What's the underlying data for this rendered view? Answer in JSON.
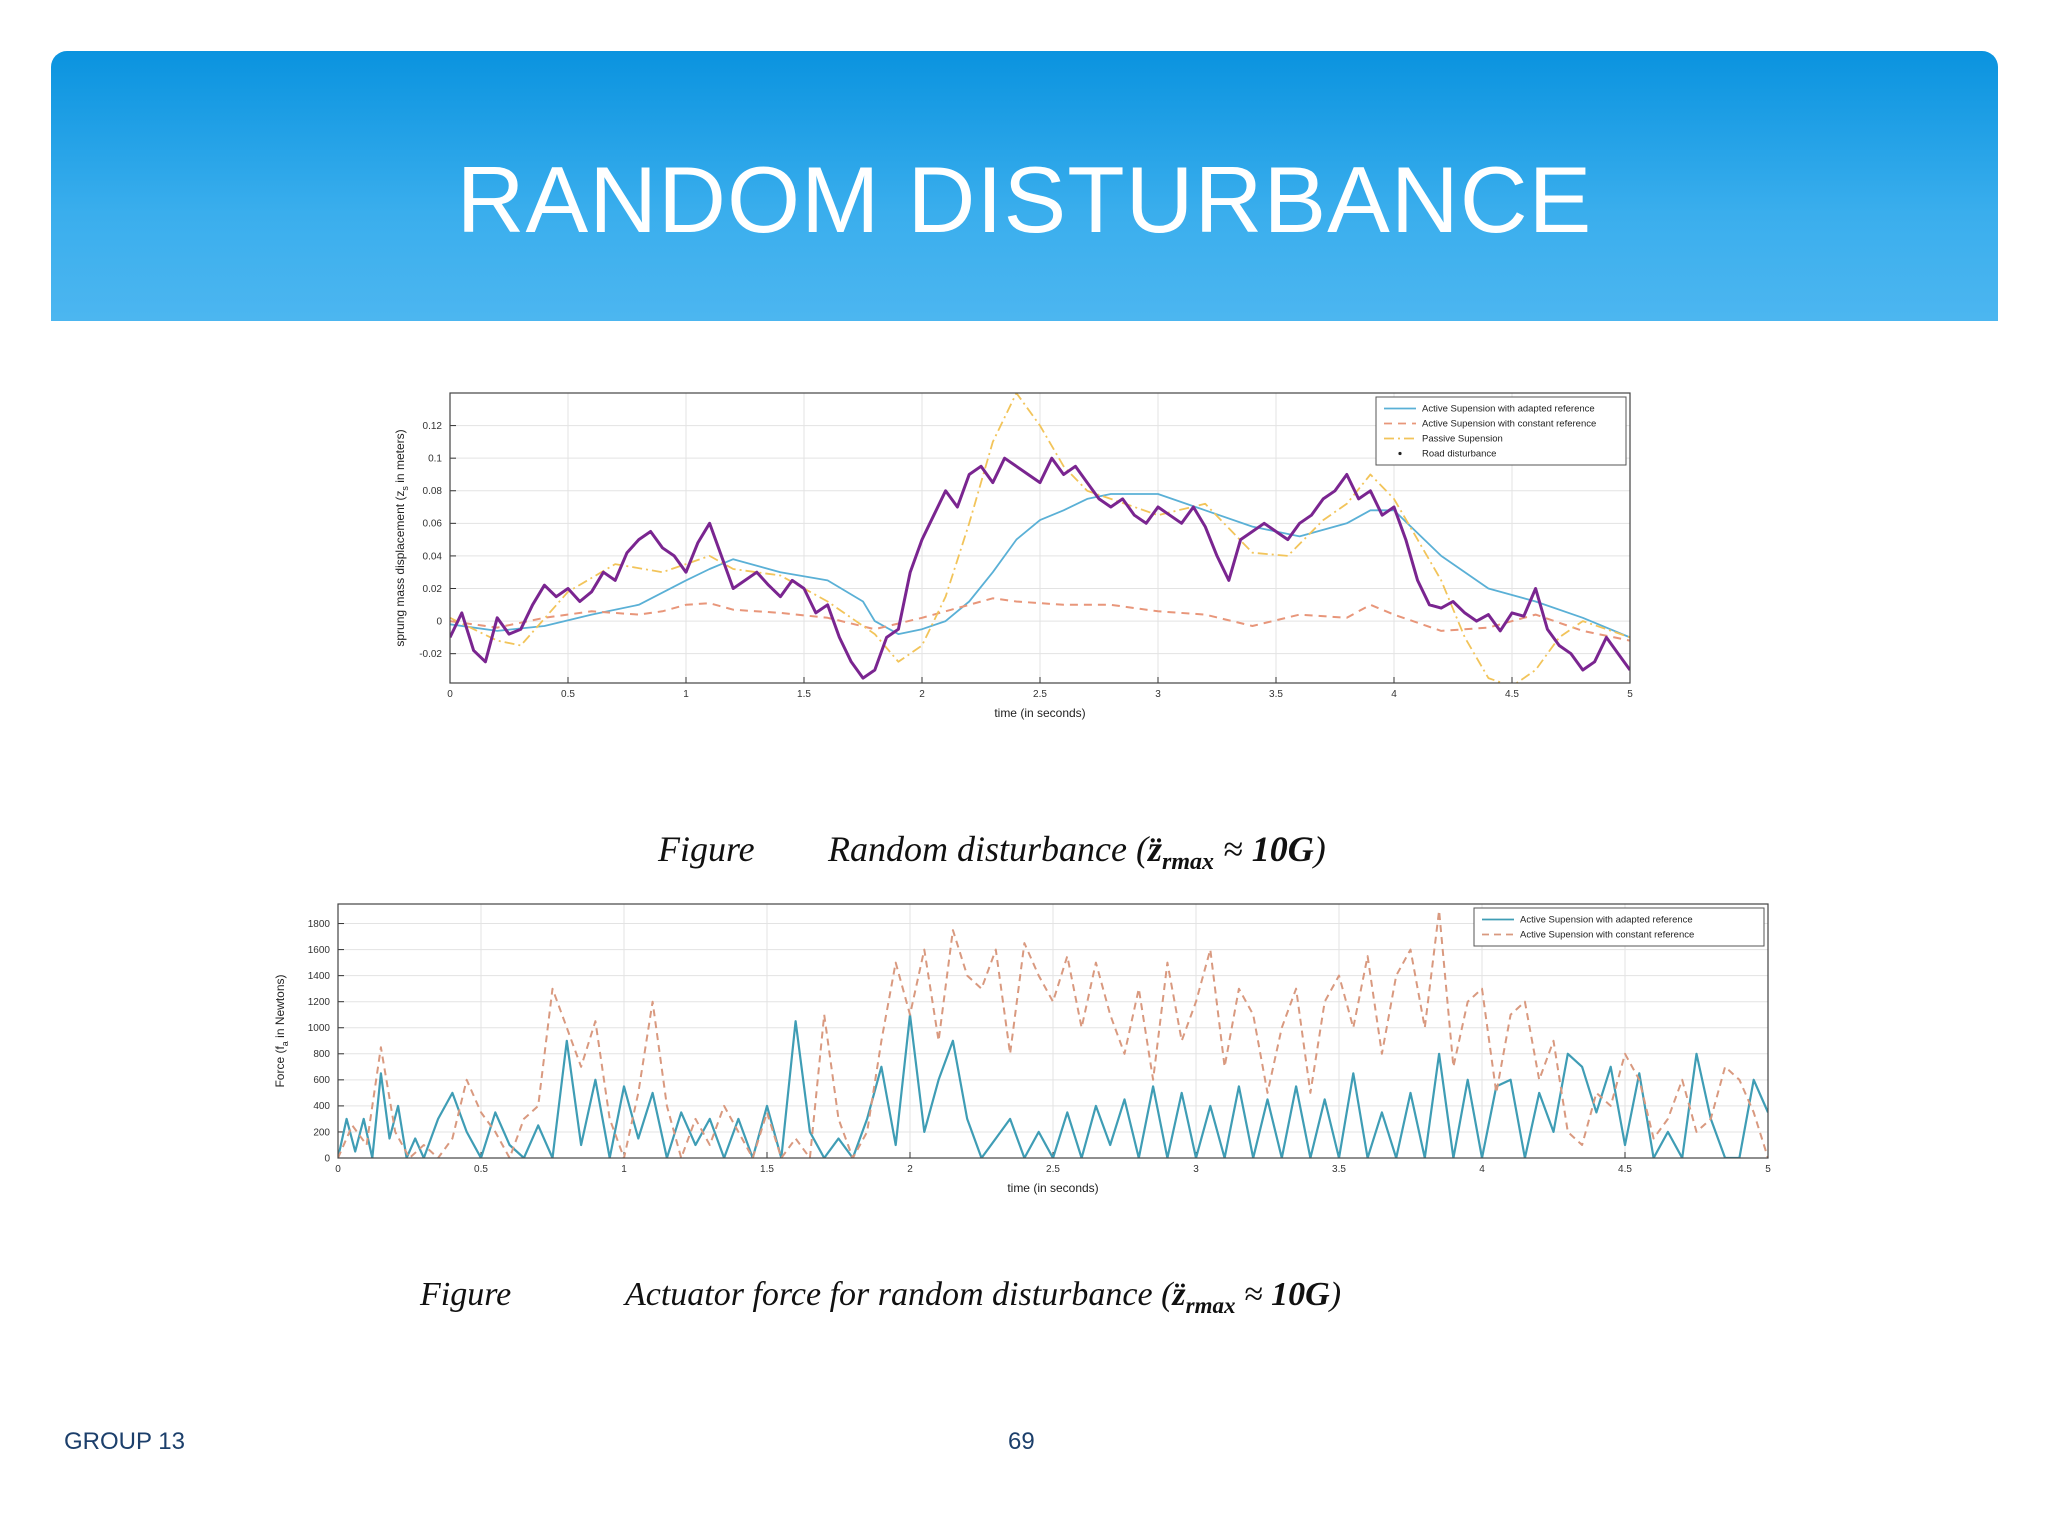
{
  "slide": {
    "title": "RANDOM DISTURBANCE",
    "footer_left": "GROUP 13",
    "page_number": "69"
  },
  "captions": [
    {
      "prefix": "Figure",
      "text": "Random disturbance (",
      "sym": "z̈",
      "sub": "rmax",
      "tail": " ≈ ",
      "bold": "10G",
      "close": ")"
    },
    {
      "prefix": "Figure",
      "text": "Actuator force for random disturbance (",
      "sym": "z̈",
      "sub": "rmax",
      "tail": " ≈ ",
      "bold": "10G",
      "close": ")"
    }
  ],
  "colors": {
    "banner_top": "#0a93df",
    "banner_bottom": "#4cb6f0",
    "active_adapted": "#5ab0d6",
    "active_constant": "#e8967a",
    "passive": "#f2c45a",
    "road": "#7a2590",
    "force_adapted": "#3f9db5",
    "force_constant": "#d9997f"
  },
  "chart_data": [
    {
      "type": "line",
      "xlabel": "time (in seconds)",
      "ylabel": "sprung mass displacement (z",
      "ylabel_sub": "s",
      "ylabel_tail": " in meters)",
      "xlim": [
        0,
        5
      ],
      "ylim": [
        -0.038,
        0.14
      ],
      "xticks": [
        0,
        0.5,
        1,
        1.5,
        2,
        2.5,
        3,
        3.5,
        4,
        4.5,
        5
      ],
      "xtick_labels": [
        "0",
        "0.5",
        "1",
        "1.5",
        "2",
        "2.5",
        "3",
        "3.5",
        "4",
        "4.5",
        "5"
      ],
      "yticks": [
        -0.02,
        0,
        0.02,
        0.04,
        0.06,
        0.08,
        0.1,
        0.12
      ],
      "ytick_labels": [
        "-0.02",
        "0",
        "0.02",
        "0.04",
        "0.06",
        "0.08",
        "0.1",
        "0.12"
      ],
      "grid": true,
      "legend": "top-right",
      "series": [
        {
          "name": "Active Supension with adapted reference",
          "style": "solid",
          "x": [
            0,
            0.2,
            0.4,
            0.6,
            0.8,
            1.0,
            1.1,
            1.2,
            1.4,
            1.6,
            1.75,
            1.8,
            1.9,
            2.0,
            2.1,
            2.2,
            2.3,
            2.4,
            2.5,
            2.6,
            2.7,
            2.8,
            3.0,
            3.2,
            3.4,
            3.6,
            3.8,
            3.9,
            4.0,
            4.2,
            4.4,
            4.6,
            4.8,
            5.0
          ],
          "y": [
            -0.002,
            -0.006,
            -0.003,
            0.004,
            0.01,
            0.025,
            0.032,
            0.038,
            0.03,
            0.025,
            0.012,
            0.0,
            -0.008,
            -0.005,
            0.0,
            0.012,
            0.03,
            0.05,
            0.062,
            0.068,
            0.075,
            0.078,
            0.078,
            0.068,
            0.058,
            0.052,
            0.06,
            0.068,
            0.068,
            0.04,
            0.02,
            0.012,
            0.002,
            -0.01
          ]
        },
        {
          "name": "Active Supension with constant reference",
          "style": "dashed",
          "x": [
            0,
            0.2,
            0.4,
            0.6,
            0.8,
            0.9,
            1.0,
            1.1,
            1.2,
            1.4,
            1.6,
            1.8,
            2.0,
            2.2,
            2.3,
            2.4,
            2.6,
            2.8,
            3.0,
            3.2,
            3.4,
            3.6,
            3.8,
            3.9,
            4.0,
            4.2,
            4.4,
            4.6,
            4.8,
            5.0
          ],
          "y": [
            0,
            -0.004,
            0.002,
            0.006,
            0.004,
            0.006,
            0.01,
            0.011,
            0.007,
            0.005,
            0.002,
            -0.005,
            0.002,
            0.01,
            0.014,
            0.012,
            0.01,
            0.01,
            0.006,
            0.004,
            -0.003,
            0.004,
            0.002,
            0.01,
            0.004,
            -0.006,
            -0.004,
            0.004,
            -0.006,
            -0.012
          ]
        },
        {
          "name": "Passive Supension",
          "style": "dashdot",
          "x": [
            0,
            0.2,
            0.3,
            0.5,
            0.7,
            0.9,
            1.0,
            1.1,
            1.2,
            1.4,
            1.6,
            1.8,
            1.9,
            2.0,
            2.1,
            2.2,
            2.3,
            2.4,
            2.5,
            2.6,
            2.7,
            2.8,
            2.9,
            3.0,
            3.2,
            3.4,
            3.55,
            3.7,
            3.8,
            3.9,
            4.0,
            4.1,
            4.2,
            4.3,
            4.4,
            4.5,
            4.6,
            4.7,
            4.8,
            4.9,
            5.0
          ],
          "y": [
            0.002,
            -0.012,
            -0.015,
            0.018,
            0.035,
            0.03,
            0.035,
            0.04,
            0.032,
            0.028,
            0.012,
            -0.008,
            -0.025,
            -0.015,
            0.015,
            0.06,
            0.11,
            0.14,
            0.12,
            0.095,
            0.08,
            0.075,
            0.07,
            0.065,
            0.072,
            0.042,
            0.04,
            0.062,
            0.072,
            0.09,
            0.075,
            0.05,
            0.025,
            -0.01,
            -0.035,
            -0.04,
            -0.03,
            -0.01,
            0.0,
            -0.005,
            -0.01
          ]
        },
        {
          "name": "Road disturbance",
          "style": "solid-thick",
          "x": [
            0,
            0.05,
            0.1,
            0.15,
            0.2,
            0.25,
            0.3,
            0.35,
            0.4,
            0.45,
            0.5,
            0.55,
            0.6,
            0.65,
            0.7,
            0.75,
            0.8,
            0.85,
            0.9,
            0.95,
            1.0,
            1.05,
            1.1,
            1.15,
            1.2,
            1.25,
            1.3,
            1.35,
            1.4,
            1.45,
            1.5,
            1.55,
            1.6,
            1.65,
            1.7,
            1.75,
            1.8,
            1.85,
            1.9,
            1.95,
            2.0,
            2.05,
            2.1,
            2.15,
            2.2,
            2.25,
            2.3,
            2.35,
            2.4,
            2.45,
            2.5,
            2.55,
            2.6,
            2.65,
            2.7,
            2.75,
            2.8,
            2.85,
            2.9,
            2.95,
            3.0,
            3.05,
            3.1,
            3.15,
            3.2,
            3.25,
            3.3,
            3.35,
            3.4,
            3.45,
            3.5,
            3.55,
            3.6,
            3.65,
            3.7,
            3.75,
            3.8,
            3.85,
            3.9,
            3.95,
            4.0,
            4.05,
            4.1,
            4.15,
            4.2,
            4.25,
            4.3,
            4.35,
            4.4,
            4.45,
            4.5,
            4.55,
            4.6,
            4.65,
            4.7,
            4.75,
            4.8,
            4.85,
            4.9,
            4.95,
            5.0
          ],
          "y": [
            -0.01,
            0.005,
            -0.018,
            -0.025,
            0.002,
            -0.008,
            -0.005,
            0.01,
            0.022,
            0.015,
            0.02,
            0.012,
            0.018,
            0.03,
            0.025,
            0.042,
            0.05,
            0.055,
            0.045,
            0.04,
            0.03,
            0.048,
            0.06,
            0.04,
            0.02,
            0.025,
            0.03,
            0.022,
            0.015,
            0.025,
            0.02,
            0.005,
            0.01,
            -0.01,
            -0.025,
            -0.035,
            -0.03,
            -0.01,
            -0.005,
            0.03,
            0.05,
            0.065,
            0.08,
            0.07,
            0.09,
            0.095,
            0.085,
            0.1,
            0.095,
            0.09,
            0.085,
            0.1,
            0.09,
            0.095,
            0.085,
            0.075,
            0.07,
            0.075,
            0.065,
            0.06,
            0.07,
            0.065,
            0.06,
            0.07,
            0.058,
            0.04,
            0.025,
            0.05,
            0.055,
            0.06,
            0.055,
            0.05,
            0.06,
            0.065,
            0.075,
            0.08,
            0.09,
            0.075,
            0.08,
            0.065,
            0.07,
            0.05,
            0.025,
            0.01,
            0.008,
            0.012,
            0.005,
            0.0,
            0.004,
            -0.006,
            0.005,
            0.003,
            0.02,
            -0.005,
            -0.015,
            -0.02,
            -0.03,
            -0.025,
            -0.01,
            -0.02,
            -0.03
          ]
        }
      ]
    },
    {
      "type": "line",
      "xlabel": "time (in seconds)",
      "ylabel": "Force (f",
      "ylabel_sub": "a",
      "ylabel_tail": " in Newtons)",
      "xlim": [
        0,
        5
      ],
      "ylim": [
        0,
        1950
      ],
      "xticks": [
        0,
        0.5,
        1,
        1.5,
        2,
        2.5,
        3,
        3.5,
        4,
        4.5,
        5
      ],
      "xtick_labels": [
        "0",
        "0.5",
        "1",
        "1.5",
        "2",
        "2.5",
        "3",
        "3.5",
        "4",
        "4.5",
        "5"
      ],
      "yticks": [
        0,
        200,
        400,
        600,
        800,
        1000,
        1200,
        1400,
        1600,
        1800
      ],
      "ytick_labels": [
        "0",
        "200",
        "400",
        "600",
        "800",
        "1000",
        "1200",
        "1400",
        "1600",
        "1800"
      ],
      "grid": true,
      "legend": "top-right",
      "series": [
        {
          "name": "Active Supension with adapted reference",
          "style": "solid",
          "x": [
            0,
            0.03,
            0.06,
            0.09,
            0.12,
            0.15,
            0.18,
            0.21,
            0.24,
            0.27,
            0.3,
            0.35,
            0.4,
            0.45,
            0.5,
            0.55,
            0.6,
            0.65,
            0.7,
            0.75,
            0.8,
            0.85,
            0.9,
            0.95,
            1.0,
            1.05,
            1.1,
            1.15,
            1.2,
            1.25,
            1.3,
            1.35,
            1.4,
            1.45,
            1.5,
            1.55,
            1.6,
            1.65,
            1.7,
            1.75,
            1.8,
            1.85,
            1.9,
            1.95,
            2.0,
            2.05,
            2.1,
            2.15,
            2.2,
            2.25,
            2.3,
            2.35,
            2.4,
            2.45,
            2.5,
            2.55,
            2.6,
            2.65,
            2.7,
            2.75,
            2.8,
            2.85,
            2.9,
            2.95,
            3.0,
            3.05,
            3.1,
            3.15,
            3.2,
            3.25,
            3.3,
            3.35,
            3.4,
            3.45,
            3.5,
            3.55,
            3.6,
            3.65,
            3.7,
            3.75,
            3.8,
            3.85,
            3.9,
            3.95,
            4.0,
            4.05,
            4.1,
            4.15,
            4.2,
            4.25,
            4.3,
            4.35,
            4.4,
            4.45,
            4.5,
            4.55,
            4.6,
            4.65,
            4.7,
            4.75,
            4.8,
            4.85,
            4.9,
            4.95,
            5.0
          ],
          "y": [
            0,
            300,
            50,
            300,
            0,
            650,
            150,
            400,
            0,
            150,
            0,
            300,
            500,
            200,
            0,
            350,
            100,
            0,
            250,
            0,
            900,
            100,
            600,
            0,
            550,
            150,
            500,
            0,
            350,
            100,
            300,
            0,
            300,
            0,
            400,
            0,
            1050,
            200,
            0,
            150,
            0,
            300,
            700,
            100,
            1100,
            200,
            600,
            900,
            300,
            0,
            150,
            300,
            0,
            200,
            0,
            350,
            0,
            400,
            100,
            450,
            0,
            550,
            0,
            500,
            0,
            400,
            0,
            550,
            0,
            450,
            0,
            550,
            0,
            450,
            0,
            650,
            0,
            350,
            0,
            500,
            0,
            800,
            0,
            600,
            0,
            550,
            600,
            0,
            500,
            200,
            800,
            700,
            350,
            700,
            100,
            650,
            0,
            200,
            0,
            800,
            300,
            0,
            0,
            600,
            350
          ]
        },
        {
          "name": "Active Supension with constant reference",
          "style": "dashed",
          "x": [
            0,
            0.05,
            0.1,
            0.15,
            0.2,
            0.25,
            0.3,
            0.35,
            0.4,
            0.45,
            0.5,
            0.55,
            0.6,
            0.65,
            0.7,
            0.75,
            0.8,
            0.85,
            0.9,
            0.95,
            1.0,
            1.05,
            1.1,
            1.15,
            1.2,
            1.25,
            1.3,
            1.35,
            1.4,
            1.45,
            1.5,
            1.55,
            1.6,
            1.65,
            1.7,
            1.75,
            1.8,
            1.85,
            1.9,
            1.95,
            2.0,
            2.05,
            2.1,
            2.15,
            2.2,
            2.25,
            2.3,
            2.35,
            2.4,
            2.45,
            2.5,
            2.55,
            2.6,
            2.65,
            2.7,
            2.75,
            2.8,
            2.85,
            2.9,
            2.95,
            3.0,
            3.05,
            3.1,
            3.15,
            3.2,
            3.25,
            3.3,
            3.35,
            3.4,
            3.45,
            3.5,
            3.55,
            3.6,
            3.65,
            3.7,
            3.75,
            3.8,
            3.85,
            3.9,
            3.95,
            4.0,
            4.05,
            4.1,
            4.15,
            4.2,
            4.25,
            4.3,
            4.35,
            4.4,
            4.45,
            4.5,
            4.55,
            4.6,
            4.65,
            4.7,
            4.75,
            4.8,
            4.85,
            4.9,
            4.95,
            5.0
          ],
          "y": [
            0,
            250,
            100,
            850,
            200,
            0,
            100,
            0,
            150,
            600,
            350,
            200,
            0,
            300,
            400,
            1300,
            1000,
            700,
            1050,
            300,
            0,
            500,
            1200,
            400,
            0,
            300,
            100,
            400,
            200,
            0,
            350,
            0,
            150,
            0,
            1100,
            300,
            0,
            200,
            900,
            1500,
            1100,
            1600,
            900,
            1750,
            1400,
            1300,
            1600,
            800,
            1650,
            1400,
            1200,
            1550,
            1000,
            1500,
            1100,
            800,
            1300,
            600,
            1500,
            900,
            1200,
            1600,
            700,
            1300,
            1100,
            500,
            1000,
            1300,
            500,
            1200,
            1400,
            1000,
            1550,
            800,
            1400,
            1600,
            1000,
            1900,
            700,
            1200,
            1300,
            500,
            1100,
            1200,
            600,
            900,
            200,
            100,
            500,
            400,
            800,
            600,
            150,
            300,
            600,
            200,
            300,
            700,
            600,
            350,
            0
          ]
        }
      ]
    }
  ]
}
